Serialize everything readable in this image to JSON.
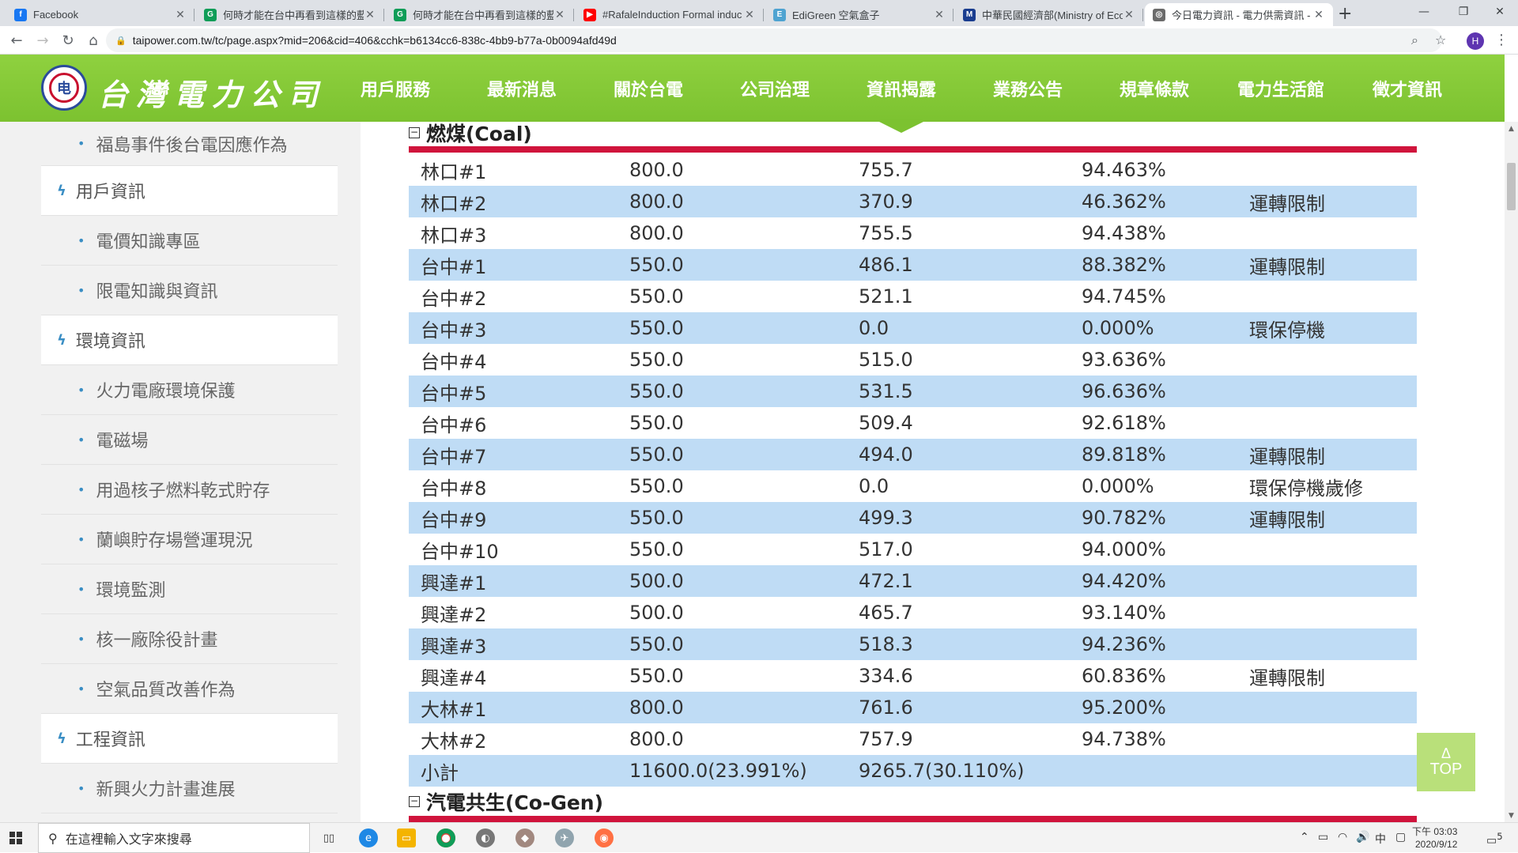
{
  "browser": {
    "tabs": [
      {
        "title": "Facebook",
        "fav": "f",
        "color": "#1877f2"
      },
      {
        "title": "何時才能在台中再看到這樣的藍天",
        "fav": "G",
        "color": "#0f9d58"
      },
      {
        "title": "何時才能在台中再看到這樣的藍天",
        "fav": "G",
        "color": "#0f9d58"
      },
      {
        "title": "#RafaleInduction Formal induc",
        "fav": "▶",
        "color": "#ff0000"
      },
      {
        "title": "EdiGreen 空氣盒子",
        "fav": "E",
        "color": "#4fa3d1"
      },
      {
        "title": "中華民國經濟部(Ministry of Eco",
        "fav": "M",
        "color": "#1a3d8f"
      },
      {
        "title": "今日電力資訊 - 電力供需資訊 - 台",
        "fav": "◎",
        "color": "#6b6b6b"
      }
    ],
    "new_tab": "+",
    "url": "taipower.com.tw/tc/page.aspx?mid=206&cid=406&cchk=b6134cc6-838c-4bb9-b77a-0b0094afd49d",
    "profile_initial": "H"
  },
  "site": {
    "logo_text": "台灣電力公司",
    "nav": [
      "用戶服務",
      "最新消息",
      "關於台電",
      "公司治理",
      "資訊揭露",
      "業務公告",
      "規章條款",
      "電力生活館",
      "徵才資訊"
    ],
    "current_nav": "資訊揭露"
  },
  "sidebar": {
    "items": [
      {
        "type": "sub",
        "label": "福島事件後台電因應作為"
      },
      {
        "type": "cat",
        "label": "用戶資訊"
      },
      {
        "type": "sub",
        "label": "電價知識專區"
      },
      {
        "type": "sub",
        "label": "限電知識與資訊"
      },
      {
        "type": "cat",
        "label": "環境資訊"
      },
      {
        "type": "sub",
        "label": "火力電廠環境保護"
      },
      {
        "type": "sub",
        "label": "電磁場"
      },
      {
        "type": "sub",
        "label": "用過核子燃料乾式貯存"
      },
      {
        "type": "sub",
        "label": "蘭嶼貯存場營運現況"
      },
      {
        "type": "sub",
        "label": "環境監測"
      },
      {
        "type": "sub",
        "label": "核一廠除役計畫"
      },
      {
        "type": "sub",
        "label": "空氣品質改善作為"
      },
      {
        "type": "cat",
        "label": "工程資訊"
      },
      {
        "type": "sub",
        "label": "新興火力計畫進展"
      }
    ]
  },
  "coal_section": {
    "title": "燃煤(Coal)",
    "rows": [
      {
        "name": "林口#1",
        "capacity": "800.0",
        "generation": "755.7",
        "ratio": "94.463%",
        "note": ""
      },
      {
        "name": "林口#2",
        "capacity": "800.0",
        "generation": "370.9",
        "ratio": "46.362%",
        "note": "運轉限制"
      },
      {
        "name": "林口#3",
        "capacity": "800.0",
        "generation": "755.5",
        "ratio": "94.438%",
        "note": ""
      },
      {
        "name": "台中#1",
        "capacity": "550.0",
        "generation": "486.1",
        "ratio": "88.382%",
        "note": "運轉限制"
      },
      {
        "name": "台中#2",
        "capacity": "550.0",
        "generation": "521.1",
        "ratio": "94.745%",
        "note": ""
      },
      {
        "name": "台中#3",
        "capacity": "550.0",
        "generation": "0.0",
        "ratio": "0.000%",
        "note": "環保停機"
      },
      {
        "name": "台中#4",
        "capacity": "550.0",
        "generation": "515.0",
        "ratio": "93.636%",
        "note": ""
      },
      {
        "name": "台中#5",
        "capacity": "550.0",
        "generation": "531.5",
        "ratio": "96.636%",
        "note": ""
      },
      {
        "name": "台中#6",
        "capacity": "550.0",
        "generation": "509.4",
        "ratio": "92.618%",
        "note": ""
      },
      {
        "name": "台中#7",
        "capacity": "550.0",
        "generation": "494.0",
        "ratio": "89.818%",
        "note": "運轉限制"
      },
      {
        "name": "台中#8",
        "capacity": "550.0",
        "generation": "0.0",
        "ratio": "0.000%",
        "note": "環保停機歲修"
      },
      {
        "name": "台中#9",
        "capacity": "550.0",
        "generation": "499.3",
        "ratio": "90.782%",
        "note": "運轉限制"
      },
      {
        "name": "台中#10",
        "capacity": "550.0",
        "generation": "517.0",
        "ratio": "94.000%",
        "note": ""
      },
      {
        "name": "興達#1",
        "capacity": "500.0",
        "generation": "472.1",
        "ratio": "94.420%",
        "note": ""
      },
      {
        "name": "興達#2",
        "capacity": "500.0",
        "generation": "465.7",
        "ratio": "93.140%",
        "note": ""
      },
      {
        "name": "興達#3",
        "capacity": "550.0",
        "generation": "518.3",
        "ratio": "94.236%",
        "note": ""
      },
      {
        "name": "興達#4",
        "capacity": "550.0",
        "generation": "334.6",
        "ratio": "60.836%",
        "note": "運轉限制"
      },
      {
        "name": "大林#1",
        "capacity": "800.0",
        "generation": "761.6",
        "ratio": "95.200%",
        "note": ""
      },
      {
        "name": "大林#2",
        "capacity": "800.0",
        "generation": "757.9",
        "ratio": "94.738%",
        "note": ""
      }
    ],
    "subtotal": {
      "name": "小計",
      "capacity": "11600.0(23.991%)",
      "generation": "9265.7(30.110%)"
    }
  },
  "cogen_section": {
    "title": "汽電共生(Co-Gen)"
  },
  "top_button": {
    "arrow": "Δ",
    "label": "TOP"
  },
  "taskbar": {
    "search_placeholder": "在這裡輸入文字來搜尋",
    "ime": "中",
    "time": "下午 03:03",
    "date": "2020/9/12",
    "notifications": "5"
  }
}
